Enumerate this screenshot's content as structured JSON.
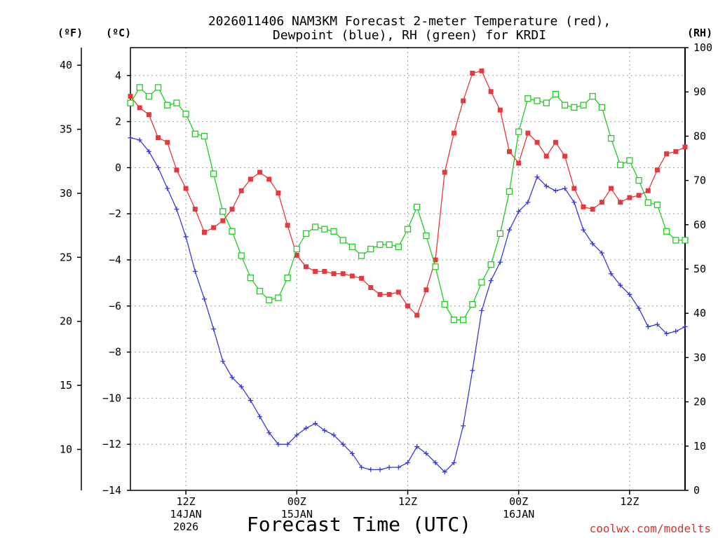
{
  "chart_data": {
    "type": "line",
    "title_line1": "2026011406 NAM3KM Forecast 2-meter Temperature (red),",
    "title_line2": "Dewpoint (blue), RH (green) for KRDI",
    "xlabel": "Forecast Time (UTC)",
    "credit": "coolwx.com/modelts",
    "unit_f": "(ºF)",
    "unit_c": "(ºC)",
    "unit_rh": "(RH)",
    "credit_color": "#e03030",
    "x_unit": "forecast hour (from 2026011406)",
    "xlim": [
      0,
      60
    ],
    "ylim_c": [
      -14.2,
      4.8
    ],
    "ylim_rh": [
      0,
      100
    ],
    "f_ticks": [
      "40",
      "35",
      "30",
      "25",
      "20",
      "15",
      "10"
    ],
    "f_tick_values": [
      40,
      35,
      30,
      25,
      20,
      15,
      10
    ],
    "c_ticks": [
      "4",
      "2",
      "0",
      "−2",
      "−4",
      "−6",
      "−8",
      "−10",
      "−12",
      "−14"
    ],
    "c_tick_values": [
      4,
      2,
      0,
      -2,
      -4,
      -6,
      -8,
      -10,
      -12,
      -14
    ],
    "rh_ticks": [
      "100",
      "90",
      "80",
      "70",
      "60",
      "50",
      "40",
      "30",
      "20",
      "10",
      "0"
    ],
    "rh_tick_values": [
      100,
      90,
      80,
      70,
      60,
      50,
      40,
      30,
      20,
      10,
      0
    ],
    "x_ticks": [
      {
        "hour": 6,
        "lines": [
          "12Z",
          "14JAN",
          "2026"
        ]
      },
      {
        "hour": 18,
        "lines": [
          "00Z",
          "15JAN"
        ]
      },
      {
        "hour": 30,
        "lines": [
          "12Z"
        ]
      },
      {
        "hour": 42,
        "lines": [
          "00Z",
          "16JAN"
        ]
      },
      {
        "hour": 54,
        "lines": [
          "12Z"
        ]
      }
    ],
    "series": [
      {
        "name": "Temperature",
        "axis": "c",
        "color": "#e8383c",
        "marker": "filled-square",
        "x": [
          0,
          1,
          2,
          3,
          4,
          5,
          6,
          7,
          8,
          9,
          10,
          11,
          12,
          13,
          14,
          15,
          16,
          17,
          18,
          19,
          20,
          21,
          22,
          23,
          24,
          25,
          26,
          27,
          28,
          29,
          30,
          31,
          32,
          33,
          34,
          35,
          36,
          37,
          38,
          39,
          40,
          41,
          42,
          43,
          44,
          45,
          46,
          47,
          48,
          49,
          50,
          51,
          52,
          53,
          54,
          55,
          56,
          57,
          58,
          59,
          60
        ],
        "values": [
          3.1,
          2.6,
          2.3,
          1.3,
          1.1,
          -0.1,
          -0.9,
          -1.8,
          -2.8,
          -2.6,
          -2.3,
          -1.8,
          -1.0,
          -0.5,
          -0.2,
          -0.5,
          -1.1,
          -2.5,
          -3.8,
          -4.3,
          -4.5,
          -4.5,
          -4.6,
          -4.6,
          -4.7,
          -4.8,
          -5.2,
          -5.5,
          -5.5,
          -5.4,
          -6.0,
          -6.4,
          -5.3,
          -4.0,
          -0.2,
          1.5,
          2.9,
          4.1,
          4.2,
          3.3,
          2.5,
          0.7,
          0.2,
          1.5,
          1.1,
          0.5,
          1.1,
          0.5,
          -0.9,
          -1.7,
          -1.8,
          -1.5,
          -0.9,
          -1.5,
          -1.3,
          -1.2,
          -1.0,
          -0.1,
          0.6,
          0.7,
          0.9
        ]
      },
      {
        "name": "Dewpoint",
        "axis": "c",
        "color": "#3838e0",
        "marker": "plus",
        "x": [
          0,
          1,
          2,
          3,
          4,
          5,
          6,
          7,
          8,
          9,
          10,
          11,
          12,
          13,
          14,
          15,
          16,
          17,
          18,
          19,
          20,
          21,
          22,
          23,
          24,
          25,
          26,
          27,
          28,
          29,
          30,
          31,
          32,
          33,
          34,
          35,
          36,
          37,
          38,
          39,
          40,
          41,
          42,
          43,
          44,
          45,
          46,
          47,
          48,
          49,
          50,
          51,
          52,
          53,
          54,
          55,
          56,
          57,
          58,
          59,
          60
        ],
        "values": [
          1.3,
          1.2,
          0.7,
          0.0,
          -0.9,
          -1.8,
          -3.0,
          -4.5,
          -5.7,
          -7.0,
          -8.4,
          -9.1,
          -9.5,
          -10.1,
          -10.8,
          -11.5,
          -12.0,
          -12.0,
          -11.6,
          -11.3,
          -11.1,
          -11.4,
          -11.6,
          -12.0,
          -12.4,
          -13.0,
          -13.1,
          -13.1,
          -13.0,
          -13.0,
          -12.8,
          -12.1,
          -12.4,
          -12.8,
          -13.2,
          -12.8,
          -11.2,
          -8.8,
          -6.2,
          -4.9,
          -4.1,
          -2.7,
          -1.9,
          -1.5,
          -0.4,
          -0.8,
          -1.0,
          -0.9,
          -1.5,
          -2.7,
          -3.3,
          -3.7,
          -4.6,
          -5.1,
          -5.5,
          -6.1,
          -6.9,
          -6.8,
          -7.2,
          -7.1,
          -6.9
        ]
      },
      {
        "name": "RH",
        "axis": "rh",
        "color": "#22cc22",
        "marker": "open-square",
        "x": [
          0,
          1,
          2,
          3,
          4,
          5,
          6,
          7,
          8,
          9,
          10,
          11,
          12,
          13,
          14,
          15,
          16,
          17,
          18,
          19,
          20,
          21,
          22,
          23,
          24,
          25,
          26,
          27,
          28,
          29,
          30,
          31,
          32,
          33,
          34,
          35,
          36,
          37,
          38,
          39,
          40,
          41,
          42,
          43,
          44,
          45,
          46,
          47,
          48,
          49,
          50,
          51,
          52,
          53,
          54,
          55,
          56,
          57,
          58,
          59,
          60
        ],
        "values": [
          87.5,
          91,
          89,
          91,
          87,
          87.5,
          85,
          80.5,
          80,
          71.5,
          63,
          58.5,
          53,
          48,
          45,
          43,
          43.5,
          48,
          54.5,
          58,
          59.5,
          59,
          58.5,
          56.5,
          55,
          53,
          54.5,
          55.5,
          55.5,
          55,
          59,
          64,
          57.5,
          50.5,
          42,
          38.5,
          38.5,
          42,
          47,
          51,
          58,
          67.5,
          81,
          88.5,
          88,
          87.5,
          89.5,
          87,
          86.5,
          87,
          89,
          86.5,
          79.5,
          73.5,
          74.5,
          70,
          65,
          64.5,
          58.5,
          56.5,
          56.5
        ]
      }
    ]
  }
}
